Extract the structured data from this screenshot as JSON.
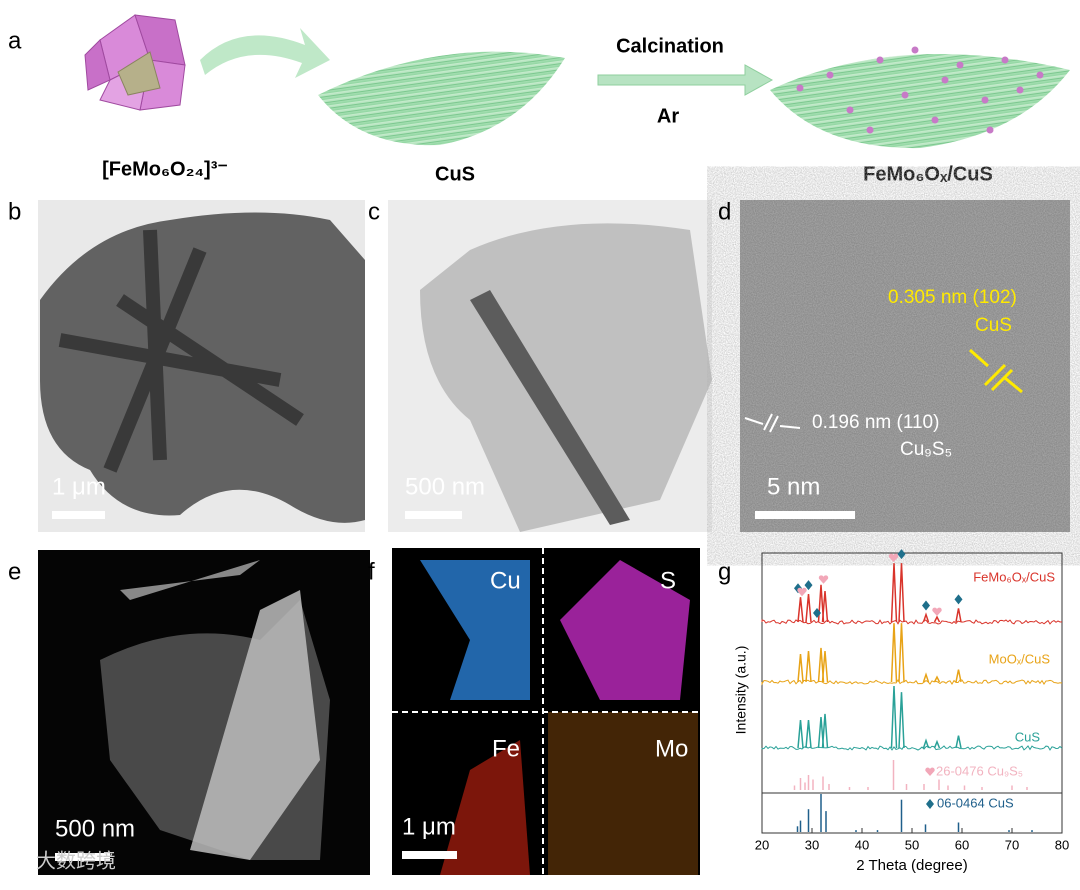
{
  "labels": [
    "a",
    "b",
    "c",
    "d",
    "e",
    "f",
    "g"
  ],
  "panel_a": {
    "precursor": "[FeMo₆O₂₄]³⁻",
    "support": "CuS",
    "product": "FeMo₆Oₓ/CuS",
    "step": "Calcination",
    "atmosphere": "Ar"
  },
  "panel_b": {
    "scale_bar": "1 μm"
  },
  "panel_c": {
    "scale_bar": "500 nm"
  },
  "panel_d": {
    "scale_bar": "5 nm",
    "fringe_1": "0.305 nm (102)",
    "phase_1": "CuS",
    "fringe_2": "0.196 nm (110)",
    "phase_2": "Cu₉S₅"
  },
  "panel_e": {
    "scale_bar": "500 nm"
  },
  "panel_f": {
    "scale_bar": "1 μm",
    "maps": [
      "Cu",
      "S",
      "Fe",
      "Mo"
    ]
  },
  "chart_data": {
    "type": "xrd",
    "xlabel": "2 Theta (degree)",
    "ylabel": "Intensity (a.u.)",
    "xlim": [
      20,
      80
    ],
    "xticks": [
      20,
      30,
      40,
      50,
      60,
      70,
      80
    ],
    "series": [
      {
        "name": "FeMo₆Oₓ/CuS",
        "color": "#d9342b",
        "x": [
          27.7,
          29.3,
          31.8,
          32.6,
          46.4,
          47.9,
          52.8,
          55.0,
          59.3
        ],
        "intensity": [
          0.4,
          0.45,
          0.6,
          0.5,
          0.95,
          0.95,
          0.12,
          0.08,
          0.22
        ]
      },
      {
        "name": "MoOₓ/CuS",
        "color": "#e8a317",
        "x": [
          27.7,
          29.3,
          31.8,
          32.6,
          46.4,
          47.9,
          52.8,
          55.0,
          59.3
        ],
        "intensity": [
          0.45,
          0.5,
          0.55,
          0.5,
          0.95,
          0.95,
          0.12,
          0.08,
          0.2
        ]
      },
      {
        "name": "CuS",
        "color": "#2aa198",
        "x": [
          27.7,
          29.3,
          31.8,
          32.6,
          46.4,
          47.9,
          52.8,
          55.0,
          59.3
        ],
        "intensity": [
          0.45,
          0.45,
          0.5,
          0.55,
          1.0,
          0.9,
          0.12,
          0.1,
          0.2
        ]
      }
    ],
    "markers": {
      "cus": [
        27.2,
        29.3,
        31.0,
        47.9,
        52.8,
        59.3
      ],
      "cu9s5": [
        28.0,
        32.3,
        46.3,
        55.0
      ]
    },
    "references": [
      {
        "name": "26-0476 Cu₉S₅",
        "color": "#f2b3c0",
        "x": [
          26.5,
          27.7,
          28.6,
          29.3,
          30.2,
          32.2,
          33.4,
          37.5,
          41.2,
          46.3,
          48.9,
          52.4,
          55.4,
          57.2,
          60.5,
          64.0,
          70.0,
          73.0
        ],
        "intensity": [
          0.15,
          0.4,
          0.25,
          0.5,
          0.35,
          0.45,
          0.2,
          0.1,
          0.1,
          1.0,
          0.2,
          0.2,
          0.35,
          0.15,
          0.15,
          0.1,
          0.15,
          0.1
        ]
      },
      {
        "name": "06-0464  CuS",
        "color": "#1f5f8b",
        "x": [
          27.1,
          27.7,
          29.3,
          31.8,
          32.8,
          38.8,
          43.1,
          47.9,
          52.7,
          59.3,
          69.4,
          74.0
        ],
        "intensity": [
          0.15,
          0.3,
          0.6,
          1.0,
          0.55,
          0.05,
          0.05,
          0.85,
          0.2,
          0.25,
          0.05,
          0.05
        ]
      }
    ]
  },
  "watermark": "大数跨境"
}
